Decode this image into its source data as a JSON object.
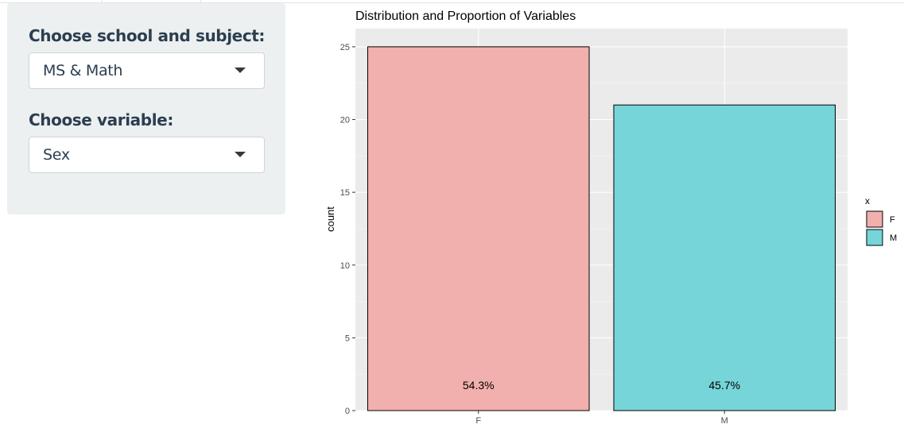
{
  "sidebar": {
    "school_subject": {
      "label": "Choose school and subject:",
      "selected": "MS & Math"
    },
    "variable": {
      "label": "Choose variable:",
      "selected": "Sex"
    }
  },
  "plot": {
    "title": "Distribution and Proportion of Variables",
    "y_label": "count",
    "legend_title": "x"
  },
  "chart_data": {
    "type": "bar",
    "title": "Distribution and Proportion of Variables",
    "xlabel": "",
    "ylabel": "count",
    "categories": [
      "F",
      "M"
    ],
    "values": [
      25,
      21
    ],
    "labels": [
      "54.3%",
      "45.7%"
    ],
    "colors": [
      "#f1b0ad",
      "#75d5d8"
    ],
    "ylim": [
      0,
      26.25
    ],
    "yticks": [
      0,
      5,
      10,
      15,
      20,
      25
    ],
    "legend": {
      "title": "x",
      "entries": [
        "F",
        "M"
      ],
      "placement": "right"
    },
    "grid": true,
    "panel_background": "#ebebeb"
  }
}
